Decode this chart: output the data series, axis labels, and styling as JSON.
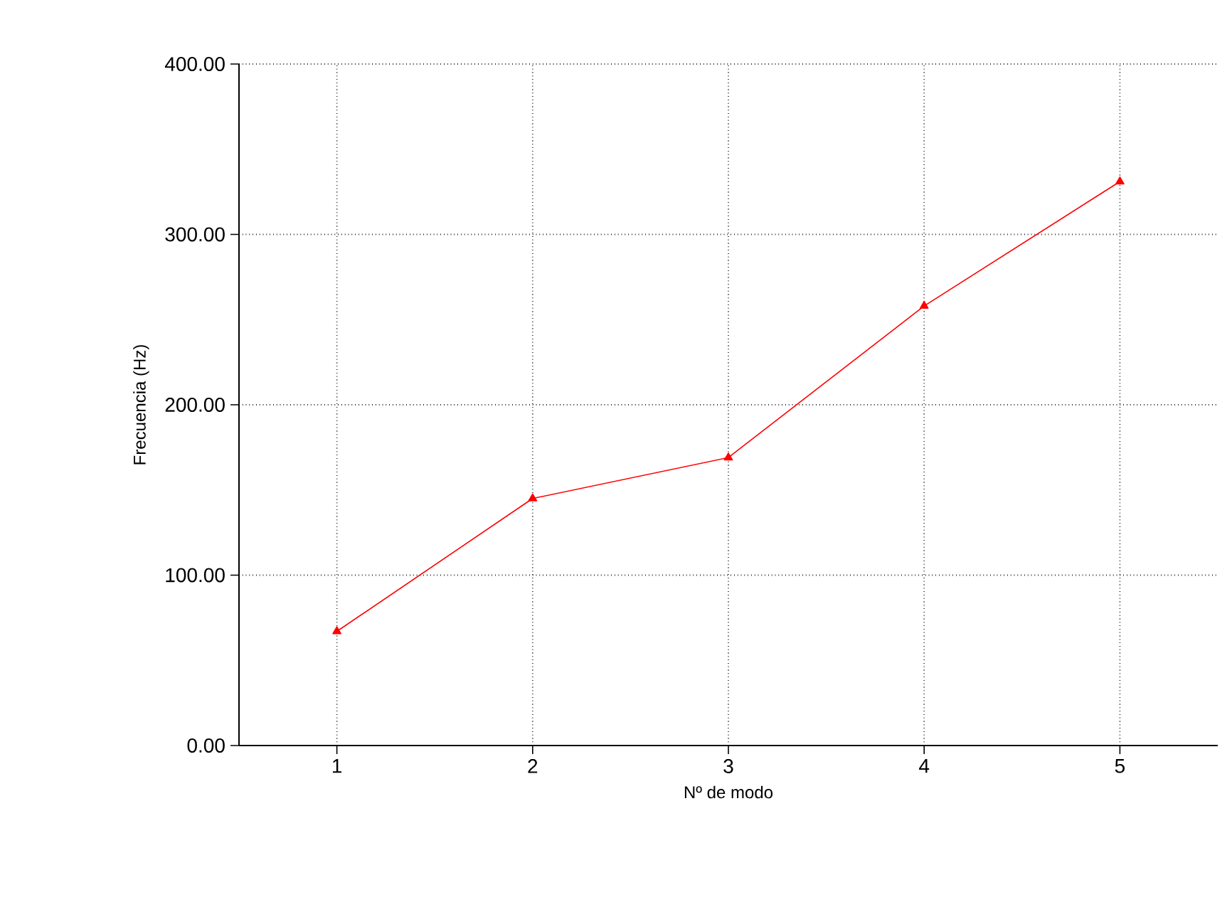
{
  "chart_data": {
    "type": "line",
    "xlabel": "Nº de modo",
    "ylabel": "Frecuencia (Hz)",
    "x": [
      1,
      2,
      3,
      4,
      5
    ],
    "series": [
      {
        "color": "#ff0000",
        "values": [
          67,
          145,
          169,
          258,
          331
        ]
      }
    ],
    "xlim": [
      0.5,
      5.5
    ],
    "ylim": [
      0,
      400
    ],
    "xticks": [
      1,
      2,
      3,
      4,
      5
    ],
    "yticks": [
      {
        "value": 0,
        "label": "0.00"
      },
      {
        "value": 100,
        "label": "100.00"
      },
      {
        "value": 200,
        "label": "200.00"
      },
      {
        "value": 300,
        "label": "300.00"
      },
      {
        "value": 400,
        "label": "400.00"
      }
    ],
    "grid": true,
    "marker": "triangle",
    "line_style": "solid"
  }
}
